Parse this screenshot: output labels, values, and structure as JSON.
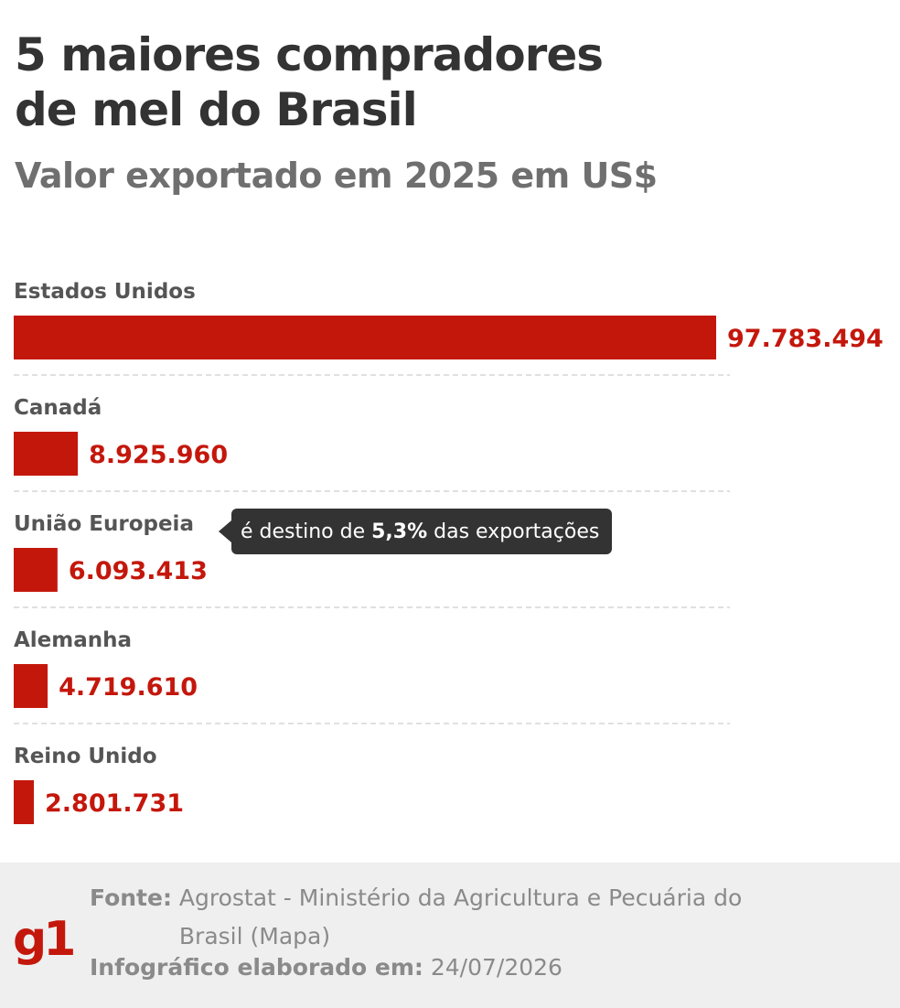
{
  "header": {
    "title_line1": "5 maiores compradores",
    "title_line2": "de mel do Brasil",
    "subtitle": "Valor exportado em 2025 em US$"
  },
  "chart_data": {
    "type": "bar",
    "orientation": "horizontal",
    "title": "5 maiores compradores de mel do Brasil",
    "subtitle": "Valor exportado em 2025 em US$",
    "categories": [
      "Estados Unidos",
      "Canadá",
      "União Europeia",
      "Alemanha",
      "Reino Unido"
    ],
    "values": [
      97783494,
      8925960,
      6093413,
      4719610,
      2801731
    ],
    "value_labels": [
      "97.783.494",
      "8.925.960",
      "6.093.413",
      "4.719.610",
      "2.801.731"
    ],
    "bar_color": "#c4170c",
    "grid": false,
    "annotation": {
      "category": "União Europeia",
      "prefix": "é destino de ",
      "bold": "5,3%",
      "suffix": " das exportações"
    }
  },
  "footer": {
    "source_label": "Fonte:",
    "source_text": "Agrostat - Ministério da Agricultura e Pecuária do Brasil (Mapa)",
    "made_label": "Infográfico elaborado em:",
    "made_date": "24/07/2026",
    "logo_text": "g1"
  }
}
